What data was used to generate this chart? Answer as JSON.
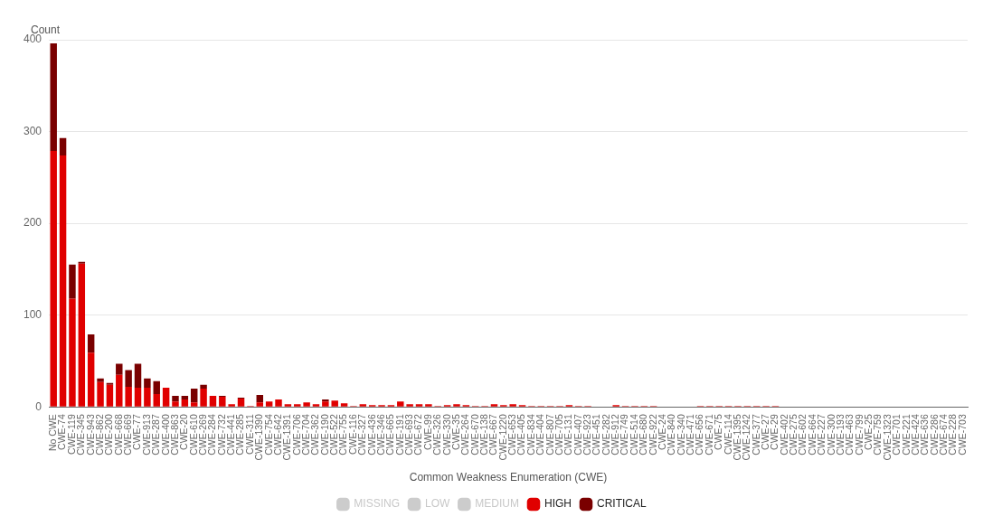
{
  "chart_data": {
    "type": "bar",
    "stacked": true,
    "ylabel": "Count",
    "xlabel": "Common Weakness Enumeration (CWE)",
    "legend": "bottom",
    "grid": "y",
    "ylim": [
      0,
      400
    ],
    "yticks": [
      0,
      100,
      200,
      300,
      400
    ],
    "categories": [
      "No CWE",
      "CWE-74",
      "CWE-119",
      "CWE-345",
      "CWE-943",
      "CWE-862",
      "CWE-200",
      "CWE-668",
      "CWE-669",
      "CWE-77",
      "CWE-913",
      "CWE-287",
      "CWE-400",
      "CWE-863",
      "CWE-20",
      "CWE-610",
      "CWE-269",
      "CWE-284",
      "CWE-732",
      "CWE-441",
      "CWE-285",
      "CWE-311",
      "CWE-1390",
      "CWE-754",
      "CWE-642",
      "CWE-1391",
      "CWE-706",
      "CWE-704",
      "CWE-362",
      "CWE-190",
      "CWE-522",
      "CWE-755",
      "CWE-116",
      "CWE-327",
      "CWE-436",
      "CWE-346",
      "CWE-665",
      "CWE-191",
      "CWE-693",
      "CWE-672",
      "CWE-99",
      "CWE-326",
      "CWE-330",
      "CWE-35",
      "CWE-264",
      "CWE-670",
      "CWE-138",
      "CWE-667",
      "CWE-1220",
      "CWE-653",
      "CWE-405",
      "CWE-834",
      "CWE-404",
      "CWE-807",
      "CWE-705",
      "CWE-131",
      "CWE-407",
      "CWE-923",
      "CWE-451",
      "CWE-282",
      "CWE-912",
      "CWE-749",
      "CWE-514",
      "CWE-680",
      "CWE-922",
      "CWE-24",
      "CWE-840",
      "CWE-340",
      "CWE-471",
      "CWE-656",
      "CWE-671",
      "CWE-75",
      "CWE-114",
      "CWE-1395",
      "CWE-1242",
      "CWE-377",
      "CWE-27",
      "CWE-29",
      "CWE-402",
      "CWE-275",
      "CWE-602",
      "CWE-664",
      "CWE-227",
      "CWE-300",
      "CWE-193",
      "CWE-463",
      "CWE-799",
      "CWE-25",
      "CWE-759",
      "CWE-1323",
      "CWE-701",
      "CWE-221",
      "CWE-424",
      "CWE-636",
      "CWE-286",
      "CWE-674",
      "CWE-228",
      "CWE-703"
    ],
    "series": [
      {
        "name": "MISSING",
        "color": "#cccccc",
        "values": [
          null,
          null,
          null,
          null,
          null,
          null,
          null,
          null,
          null,
          null,
          null,
          null,
          null,
          null,
          null,
          null,
          null,
          null,
          null,
          null,
          null,
          null,
          null,
          null,
          null,
          null,
          null,
          null,
          null,
          null,
          null,
          null,
          null,
          null,
          null,
          null,
          null,
          null,
          null,
          null,
          null,
          null,
          null,
          null,
          null,
          null,
          null,
          null,
          null,
          null,
          null,
          null,
          null,
          null,
          null,
          null,
          null,
          null,
          null,
          null,
          null,
          null,
          null,
          null,
          null,
          null,
          null,
          null,
          null,
          null,
          null,
          null,
          null,
          null,
          null,
          null,
          null,
          null,
          null,
          null,
          null,
          null,
          null,
          null,
          null,
          null,
          null,
          null,
          null,
          null,
          null,
          null,
          null,
          null,
          null,
          null,
          null,
          null
        ]
      },
      {
        "name": "LOW",
        "color": "#cccccc",
        "values": [
          null,
          null,
          null,
          null,
          null,
          null,
          null,
          null,
          null,
          null,
          null,
          null,
          null,
          null,
          null,
          null,
          null,
          null,
          null,
          null,
          null,
          null,
          null,
          null,
          null,
          null,
          null,
          null,
          null,
          null,
          null,
          null,
          null,
          null,
          null,
          null,
          null,
          null,
          null,
          null,
          null,
          null,
          null,
          null,
          null,
          null,
          null,
          null,
          null,
          null,
          null,
          null,
          null,
          null,
          null,
          null,
          null,
          null,
          null,
          null,
          null,
          null,
          null,
          null,
          null,
          null,
          null,
          null,
          null,
          null,
          null,
          null,
          null,
          null,
          null,
          null,
          null,
          null,
          null,
          null,
          null,
          null,
          null,
          null,
          null,
          null,
          null,
          null,
          null,
          null,
          null,
          null,
          null,
          null,
          null,
          null,
          null,
          null
        ]
      },
      {
        "name": "MEDIUM",
        "color": "#cccccc",
        "values": [
          null,
          null,
          null,
          null,
          null,
          null,
          null,
          null,
          null,
          null,
          null,
          null,
          null,
          null,
          null,
          null,
          null,
          null,
          null,
          null,
          null,
          null,
          null,
          null,
          null,
          null,
          null,
          null,
          null,
          null,
          null,
          null,
          null,
          null,
          null,
          null,
          null,
          null,
          null,
          null,
          null,
          null,
          null,
          null,
          null,
          null,
          null,
          null,
          null,
          null,
          null,
          null,
          null,
          null,
          null,
          null,
          null,
          null,
          null,
          null,
          null,
          null,
          null,
          null,
          null,
          null,
          null,
          null,
          null,
          null,
          null,
          null,
          null,
          null,
          null,
          null,
          null,
          null,
          null,
          null,
          null,
          null,
          null,
          null,
          null,
          null,
          null,
          null,
          null,
          null,
          null,
          null,
          null,
          null,
          null,
          null,
          null,
          null
        ]
      },
      {
        "name": "HIGH",
        "color": "#e00000",
        "values": [
          279,
          274,
          118,
          156,
          59,
          27,
          24,
          35,
          22,
          21,
          21,
          14,
          21,
          6,
          8,
          5,
          20,
          12,
          11,
          3,
          9,
          1,
          5,
          6,
          8,
          3,
          3,
          5,
          3,
          6,
          7,
          4,
          1,
          3,
          2,
          2,
          2,
          6,
          3,
          3,
          3,
          1,
          2,
          3,
          2,
          1,
          1,
          3,
          2,
          3,
          2,
          1,
          1,
          1,
          1,
          2,
          1,
          1,
          0,
          0,
          2,
          1,
          1,
          1,
          1,
          0,
          0,
          0,
          0,
          1,
          1,
          1,
          1,
          1,
          1,
          1,
          1,
          1,
          0,
          0,
          0,
          0,
          0,
          0,
          0,
          0,
          0,
          0,
          0,
          0,
          0,
          0,
          0,
          0,
          0,
          0,
          0,
          0
        ]
      },
      {
        "name": "CRITICAL",
        "color": "#7a0000",
        "values": [
          117,
          19,
          37,
          2,
          20,
          4,
          2,
          12,
          18,
          26,
          10,
          14,
          0,
          6,
          4,
          15,
          4,
          0,
          1,
          0,
          1,
          0,
          8,
          0,
          0,
          0,
          0,
          0,
          0,
          2,
          0,
          0,
          0,
          0,
          0,
          0,
          0,
          0,
          0,
          0,
          0,
          0,
          0,
          0,
          0,
          0,
          0,
          0,
          0,
          0,
          0,
          0,
          0,
          0,
          0,
          0,
          0,
          0,
          0,
          0,
          0,
          0,
          0,
          0,
          0,
          0,
          0,
          0,
          0,
          0,
          0,
          0,
          0,
          0,
          0,
          0,
          0,
          0,
          0,
          0,
          0,
          0,
          0,
          0,
          0,
          0,
          0,
          0,
          0,
          0,
          0,
          0,
          0,
          0,
          0,
          0,
          0,
          0
        ]
      }
    ]
  }
}
